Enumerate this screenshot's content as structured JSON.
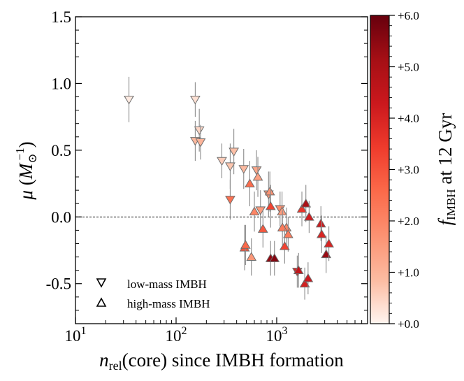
{
  "chart_data": {
    "type": "scatter",
    "xscale": "log",
    "xlim": [
      10,
      8000
    ],
    "ylim": [
      -0.8,
      1.5
    ],
    "xticks": [
      {
        "value": 10,
        "base": "10",
        "exp": "1"
      },
      {
        "value": 100,
        "base": "10",
        "exp": "2"
      },
      {
        "value": 1000,
        "base": "10",
        "exp": "3"
      }
    ],
    "yticks": [
      {
        "value": 1.5,
        "label": "1.5"
      },
      {
        "value": 1.0,
        "label": "1.0"
      },
      {
        "value": 0.5,
        "label": "0.5"
      },
      {
        "value": 0.0,
        "label": "0.0"
      },
      {
        "value": -0.5,
        "label": "-0.5"
      }
    ],
    "xlabel": {
      "italic": "n",
      "sub": "rel",
      "rest": "(core) since IMBH formation"
    },
    "ylabel": {
      "mu": "μ",
      "open": " (",
      "M": "M",
      "sub": "⊙",
      "sup": "−1",
      "close": ")"
    },
    "reference_line": {
      "y": 0,
      "style": "dashed"
    },
    "colorbar": {
      "label_f": "f",
      "label_sub": "IMBH",
      "label_rest": " at 12 Gyr",
      "range": [
        0,
        6
      ],
      "ticks": [
        {
          "value": 0,
          "label": "+0.0"
        },
        {
          "value": 1,
          "label": "+1.0"
        },
        {
          "value": 2,
          "label": "+2.0"
        },
        {
          "value": 3,
          "label": "+3.0"
        },
        {
          "value": 4,
          "label": "+4.0"
        },
        {
          "value": 5,
          "label": "+5.0"
        },
        {
          "value": 6,
          "label": "+6.0"
        }
      ],
      "colors": [
        "#fff5f0",
        "#fcbba1",
        "#fc9272",
        "#fb6a4a",
        "#ef3b2c",
        "#cb181d",
        "#a50f15",
        "#67000d"
      ]
    },
    "legend": {
      "placement": "lower-left",
      "entries": [
        {
          "marker": "down-triangle",
          "label": "low-mass IMBH"
        },
        {
          "marker": "up-triangle",
          "label": "high-mass IMBH"
        }
      ]
    },
    "series": [
      {
        "marker": "down-triangle",
        "points": [
          {
            "x": 34,
            "y": 0.88,
            "err": 0.17,
            "f": 0.15
          },
          {
            "x": 155,
            "y": 0.88,
            "err": 0.13,
            "f": 0.3
          },
          {
            "x": 170,
            "y": 0.65,
            "err": 0.16,
            "f": 0.45
          },
          {
            "x": 155,
            "y": 0.57,
            "err": 0.15,
            "f": 0.9
          },
          {
            "x": 175,
            "y": 0.56,
            "err": 0.13,
            "f": 1.0
          },
          {
            "x": 285,
            "y": 0.42,
            "err": 0.13,
            "f": 0.6
          },
          {
            "x": 345,
            "y": 0.38,
            "err": 0.17,
            "f": 0.7
          },
          {
            "x": 375,
            "y": 0.49,
            "err": 0.17,
            "f": 0.8
          },
          {
            "x": 470,
            "y": 0.36,
            "err": 0.15,
            "f": 0.9
          },
          {
            "x": 630,
            "y": 0.35,
            "err": 0.15,
            "f": 1.3
          },
          {
            "x": 830,
            "y": 0.17,
            "err": 0.17,
            "f": 1.6
          },
          {
            "x": 1080,
            "y": 0.06,
            "err": 0.13,
            "f": 1.8
          },
          {
            "x": 690,
            "y": 0.05,
            "err": 0.15,
            "f": 1.5
          },
          {
            "x": 345,
            "y": 0.13,
            "err": 0.15,
            "f": 2.4
          },
          {
            "x": 1600,
            "y": -0.41,
            "err": 0.12,
            "f": 4.0
          }
        ]
      },
      {
        "marker": "up-triangle",
        "points": [
          {
            "x": 650,
            "y": 0.3,
            "err": 0.15,
            "f": 1.4
          },
          {
            "x": 540,
            "y": 0.25,
            "err": 0.17,
            "f": 2.5
          },
          {
            "x": 855,
            "y": 0.19,
            "err": 0.15,
            "f": 1.7
          },
          {
            "x": 870,
            "y": 0.08,
            "err": 0.16,
            "f": 3.3
          },
          {
            "x": 600,
            "y": 0.04,
            "err": 0.15,
            "f": 2.0
          },
          {
            "x": 1130,
            "y": 0.04,
            "err": 0.15,
            "f": 1.5
          },
          {
            "x": 1250,
            "y": -0.08,
            "err": 0.15,
            "f": 2.0
          },
          {
            "x": 1300,
            "y": -0.13,
            "err": 0.13,
            "f": 2.2
          },
          {
            "x": 1140,
            "y": -0.08,
            "err": 0.13,
            "f": 2.2
          },
          {
            "x": 730,
            "y": -0.09,
            "err": 0.14,
            "f": 2.9
          },
          {
            "x": 1200,
            "y": -0.22,
            "err": 0.13,
            "f": 3.3
          },
          {
            "x": 480,
            "y": -0.23,
            "err": 0.17,
            "f": 3.0
          },
          {
            "x": 490,
            "y": -0.21,
            "err": 0.15,
            "f": 2.6
          },
          {
            "x": 560,
            "y": -0.3,
            "err": 0.14,
            "f": 1.6
          },
          {
            "x": 870,
            "y": -0.31,
            "err": 0.13,
            "f": 5.4
          },
          {
            "x": 950,
            "y": -0.31,
            "err": 0.13,
            "f": 5.6
          },
          {
            "x": 1780,
            "y": 0.06,
            "err": 0.13,
            "f": 3.6
          },
          {
            "x": 1950,
            "y": 0.1,
            "err": 0.14,
            "f": 5.0
          },
          {
            "x": 2100,
            "y": 0.0,
            "err": 0.12,
            "f": 4.2
          },
          {
            "x": 2750,
            "y": -0.05,
            "err": 0.13,
            "f": 4.2
          },
          {
            "x": 2800,
            "y": -0.13,
            "err": 0.14,
            "f": 4.0
          },
          {
            "x": 3100,
            "y": -0.28,
            "err": 0.14,
            "f": 5.3
          },
          {
            "x": 3300,
            "y": -0.2,
            "err": 0.13,
            "f": 4.0
          },
          {
            "x": 1650,
            "y": -0.4,
            "err": 0.13,
            "f": 4.5
          },
          {
            "x": 1900,
            "y": -0.5,
            "err": 0.12,
            "f": 4.1
          },
          {
            "x": 2050,
            "y": -0.46,
            "err": 0.12,
            "f": 4.3
          }
        ]
      }
    ]
  }
}
